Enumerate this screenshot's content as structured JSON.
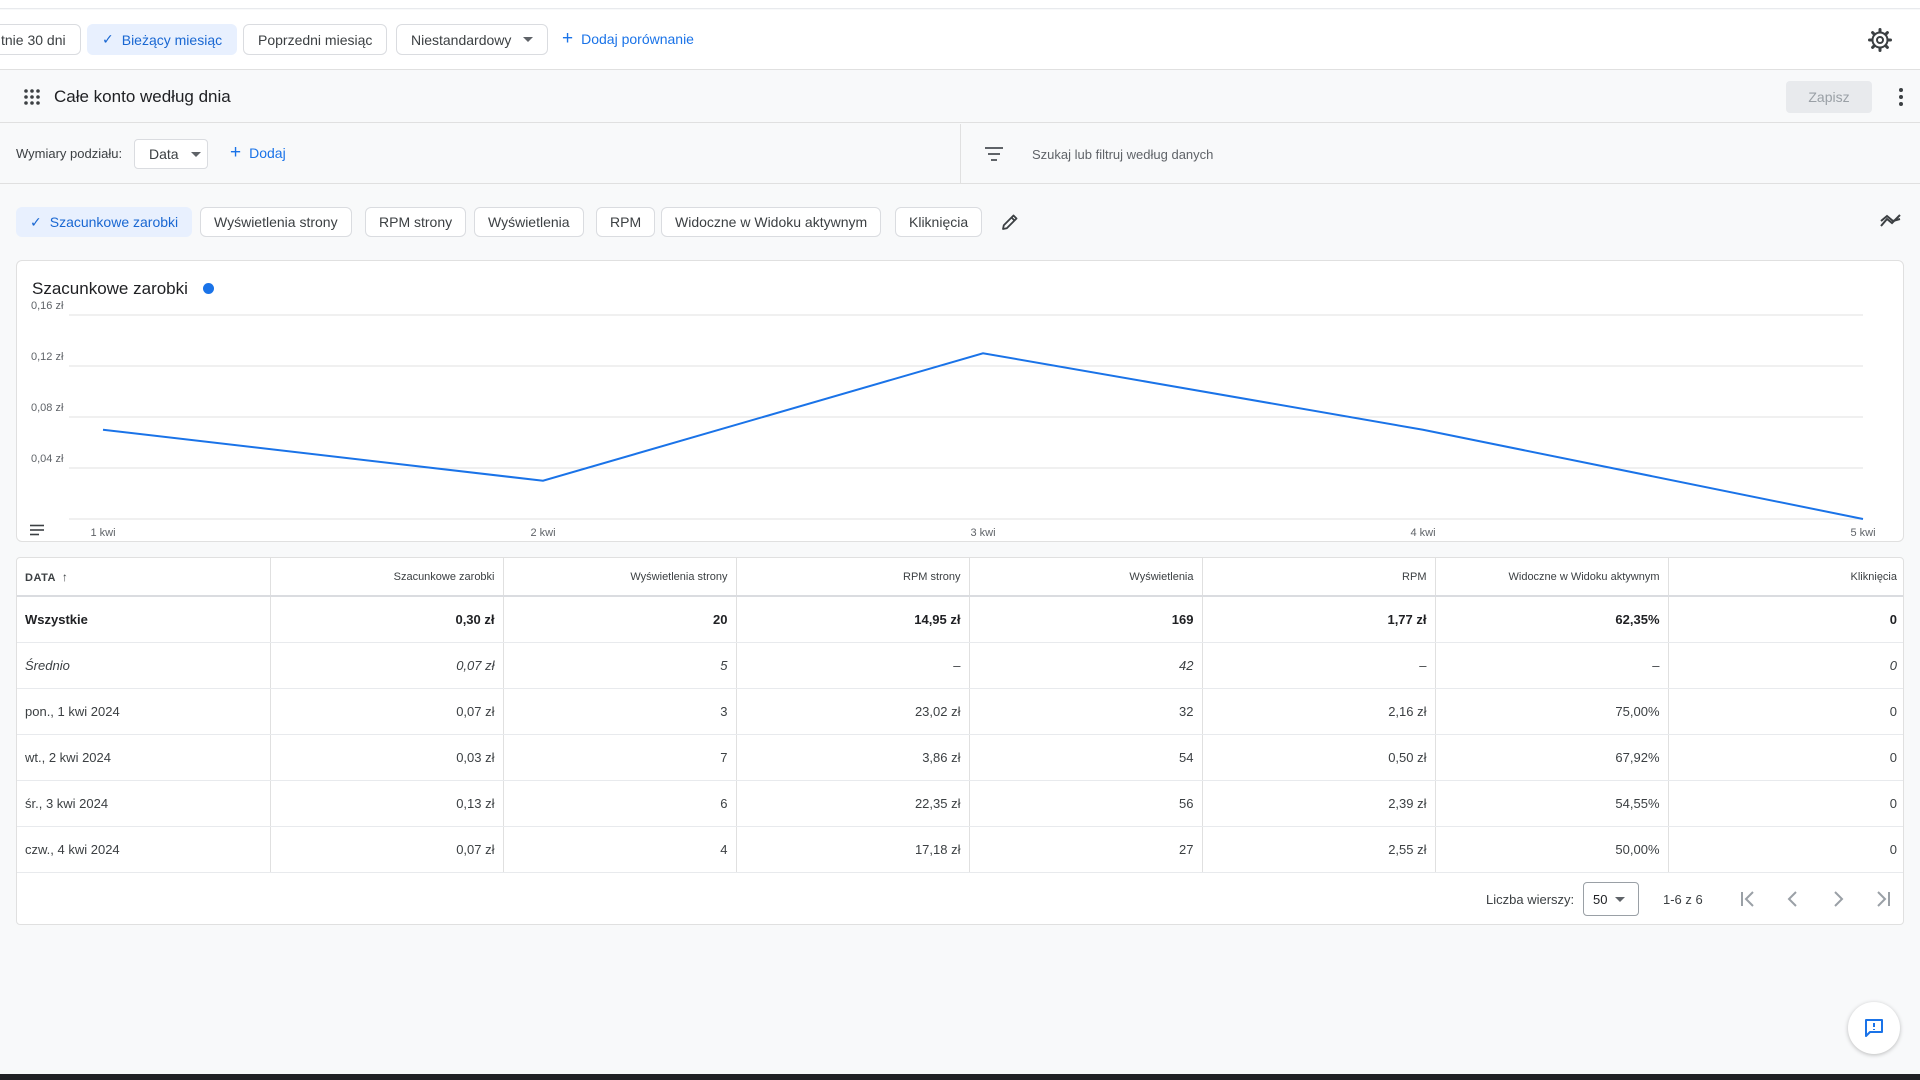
{
  "date_range": {
    "chips": [
      {
        "label": "tnie 30 dni",
        "selected": false
      },
      {
        "label": "Bieżący miesiąc",
        "selected": true
      },
      {
        "label": "Poprzedni miesiąc",
        "selected": false
      },
      {
        "label": "Niestandardowy",
        "selected": false
      }
    ],
    "add_comparison": "Dodaj porównanie"
  },
  "report": {
    "title": "Całe konto według dnia",
    "save_label": "Zapisz"
  },
  "dimensions": {
    "label": "Wymiary podziału:",
    "selected": "Data",
    "add_label": "Dodaj",
    "filter_placeholder": "Szukaj lub filtruj według danych"
  },
  "metrics": [
    {
      "label": "Szacunkowe zarobki",
      "selected": true
    },
    {
      "label": "Wyświetlenia strony",
      "selected": false
    },
    {
      "label": "RPM strony",
      "selected": false
    },
    {
      "label": "Wyświetlenia",
      "selected": false
    },
    {
      "label": "RPM",
      "selected": false
    },
    {
      "label": "Widoczne w Widoku aktywnym",
      "selected": false
    },
    {
      "label": "Kliknięcia",
      "selected": false
    }
  ],
  "chart_data": {
    "type": "line",
    "title": "Szacunkowe zarobki",
    "categories": [
      "1 kwi",
      "2 kwi",
      "3 kwi",
      "4 kwi",
      "5 kwi"
    ],
    "series": [
      {
        "name": "Szacunkowe zarobki",
        "values": [
          0.07,
          0.03,
          0.13,
          0.07,
          0.0
        ],
        "color": "#1a73e8"
      }
    ],
    "y_ticks": [
      "0,04 zł",
      "0,08 zł",
      "0,12 zł",
      "0,16 zł"
    ],
    "y_tick_values": [
      0.04,
      0.08,
      0.12,
      0.16
    ],
    "ylim": [
      0,
      0.16
    ],
    "grid": true
  },
  "table": {
    "columns": [
      "DATA",
      "Szacunkowe zarobki",
      "Wyświetlenia strony",
      "RPM strony",
      "Wyświetlenia",
      "RPM",
      "Widoczne w Widoku aktywnym",
      "Kliknięcia"
    ],
    "total": [
      "Wszystkie",
      "0,30 zł",
      "20",
      "14,95 zł",
      "169",
      "1,77 zł",
      "62,35%",
      "0"
    ],
    "average": [
      "Średnio",
      "0,07 zł",
      "5",
      "–",
      "42",
      "–",
      "–",
      "0"
    ],
    "rows": [
      [
        "pon., 1 kwi 2024",
        "0,07 zł",
        "3",
        "23,02 zł",
        "32",
        "2,16 zł",
        "75,00%",
        "0"
      ],
      [
        "wt., 2 kwi 2024",
        "0,03 zł",
        "7",
        "3,86 zł",
        "54",
        "0,50 zł",
        "67,92%",
        "0"
      ],
      [
        "śr., 3 kwi 2024",
        "0,13 zł",
        "6",
        "22,35 zł",
        "56",
        "2,39 zł",
        "54,55%",
        "0"
      ],
      [
        "czw., 4 kwi 2024",
        "0,07 zł",
        "4",
        "17,18 zł",
        "27",
        "2,55 zł",
        "50,00%",
        "0"
      ]
    ]
  },
  "pager": {
    "rows_label": "Liczba wierszy:",
    "rows_value": "50",
    "range": "1-6 z 6"
  },
  "colors": {
    "accent": "#1a73e8",
    "selected_chip_bg": "#e8f0fe"
  }
}
